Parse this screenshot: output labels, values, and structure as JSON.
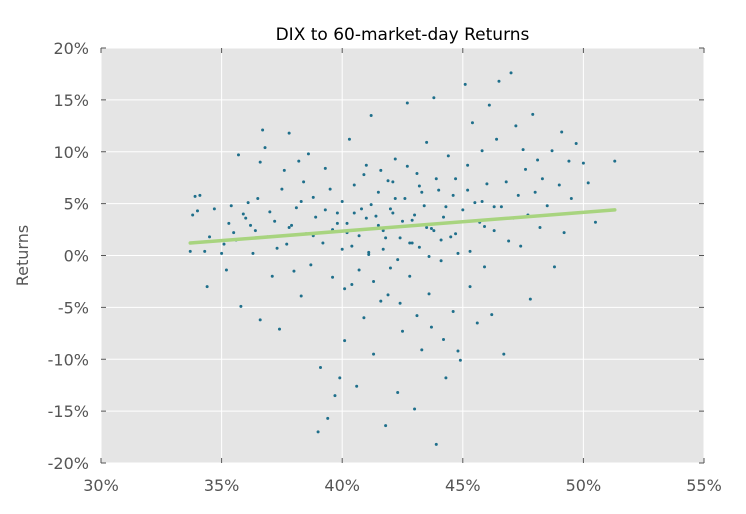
{
  "chart_data": {
    "type": "scatter",
    "title": "DIX to 60-market-day Returns",
    "xlabel": "",
    "ylabel": "Returns",
    "xlim": [
      0.3,
      0.55
    ],
    "ylim": [
      -0.2,
      0.2
    ],
    "x_ticks": [
      0.3,
      0.35,
      0.4,
      0.45,
      0.5,
      0.55
    ],
    "x_tick_labels": [
      "30%",
      "35%",
      "40%",
      "45%",
      "50%",
      "55%"
    ],
    "y_ticks": [
      -0.2,
      -0.15,
      -0.1,
      -0.05,
      0.0,
      0.05,
      0.1,
      0.15,
      0.2
    ],
    "y_tick_labels": [
      "-20%",
      "-15%",
      "-10%",
      "-5%",
      "0%",
      "5%",
      "10%",
      "15%",
      "20%"
    ],
    "grid": true,
    "background": "#e5e5e5",
    "point_color": "#1f6f8b",
    "trend_color": "#a8d47f",
    "trend_line": {
      "x": [
        0.337,
        0.513
      ],
      "y": [
        0.012,
        0.044
      ]
    },
    "points": [
      [
        0.337,
        0.004
      ],
      [
        0.338,
        0.039
      ],
      [
        0.339,
        0.057
      ],
      [
        0.34,
        0.043
      ],
      [
        0.341,
        0.058
      ],
      [
        0.343,
        0.004
      ],
      [
        0.344,
        -0.03
      ],
      [
        0.345,
        0.018
      ],
      [
        0.347,
        0.045
      ],
      [
        0.35,
        0.002
      ],
      [
        0.351,
        0.011
      ],
      [
        0.352,
        -0.014
      ],
      [
        0.353,
        0.031
      ],
      [
        0.354,
        0.048
      ],
      [
        0.355,
        0.022
      ],
      [
        0.356,
        0.015
      ],
      [
        0.357,
        0.097
      ],
      [
        0.358,
        -0.049
      ],
      [
        0.359,
        0.04
      ],
      [
        0.36,
        0.036
      ],
      [
        0.361,
        0.051
      ],
      [
        0.362,
        0.029
      ],
      [
        0.363,
        0.002
      ],
      [
        0.364,
        0.024
      ],
      [
        0.365,
        0.055
      ],
      [
        0.366,
        -0.062
      ],
      [
        0.366,
        0.09
      ],
      [
        0.367,
        0.121
      ],
      [
        0.368,
        0.104
      ],
      [
        0.369,
        0.018
      ],
      [
        0.37,
        0.042
      ],
      [
        0.371,
        -0.02
      ],
      [
        0.372,
        0.033
      ],
      [
        0.373,
        0.007
      ],
      [
        0.374,
        -0.071
      ],
      [
        0.375,
        0.064
      ],
      [
        0.376,
        0.082
      ],
      [
        0.377,
        0.011
      ],
      [
        0.378,
        0.118
      ],
      [
        0.379,
        0.029
      ],
      [
        0.38,
        -0.015
      ],
      [
        0.381,
        0.046
      ],
      [
        0.382,
        0.091
      ],
      [
        0.383,
        -0.039
      ],
      [
        0.384,
        0.071
      ],
      [
        0.385,
        0.021
      ],
      [
        0.386,
        0.098
      ],
      [
        0.387,
        -0.009
      ],
      [
        0.388,
        0.056
      ],
      [
        0.389,
        0.037
      ],
      [
        0.39,
        -0.17
      ],
      [
        0.391,
        -0.108
      ],
      [
        0.392,
        0.012
      ],
      [
        0.393,
        0.084
      ],
      [
        0.394,
        -0.157
      ],
      [
        0.395,
        0.064
      ],
      [
        0.396,
        0.025
      ],
      [
        0.397,
        -0.135
      ],
      [
        0.398,
        0.041
      ],
      [
        0.399,
        -0.118
      ],
      [
        0.4,
        0.006
      ],
      [
        0.4,
        0.052
      ],
      [
        0.401,
        -0.082
      ],
      [
        0.402,
        0.031
      ],
      [
        0.403,
        0.112
      ],
      [
        0.404,
        -0.028
      ],
      [
        0.405,
        0.068
      ],
      [
        0.406,
        -0.126
      ],
      [
        0.407,
        0.019
      ],
      [
        0.408,
        0.045
      ],
      [
        0.409,
        -0.06
      ],
      [
        0.41,
        0.087
      ],
      [
        0.411,
        0.003
      ],
      [
        0.412,
        0.135
      ],
      [
        0.413,
        -0.095
      ],
      [
        0.414,
        0.038
      ],
      [
        0.415,
        0.061
      ],
      [
        0.416,
        -0.044
      ],
      [
        0.417,
        0.024
      ],
      [
        0.418,
        -0.164
      ],
      [
        0.419,
        0.072
      ],
      [
        0.42,
        -0.012
      ],
      [
        0.421,
        0.041
      ],
      [
        0.422,
        0.093
      ],
      [
        0.423,
        -0.132
      ],
      [
        0.424,
        0.017
      ],
      [
        0.425,
        -0.073
      ],
      [
        0.426,
        0.055
      ],
      [
        0.427,
        0.147
      ],
      [
        0.428,
        -0.02
      ],
      [
        0.429,
        0.034
      ],
      [
        0.43,
        -0.148
      ],
      [
        0.431,
        0.079
      ],
      [
        0.432,
        0.008
      ],
      [
        0.433,
        -0.091
      ],
      [
        0.434,
        0.048
      ],
      [
        0.435,
        0.109
      ],
      [
        0.436,
        -0.037
      ],
      [
        0.437,
        0.026
      ],
      [
        0.438,
        0.152
      ],
      [
        0.439,
        -0.182
      ],
      [
        0.44,
        0.063
      ],
      [
        0.441,
        -0.005
      ],
      [
        0.442,
        0.037
      ],
      [
        0.443,
        -0.118
      ],
      [
        0.444,
        0.096
      ],
      [
        0.445,
        0.018
      ],
      [
        0.446,
        -0.054
      ],
      [
        0.447,
        0.074
      ],
      [
        0.448,
        0.002
      ],
      [
        0.449,
        -0.101
      ],
      [
        0.45,
        0.044
      ],
      [
        0.451,
        0.165
      ],
      [
        0.452,
        0.087
      ],
      [
        0.453,
        -0.03
      ],
      [
        0.454,
        0.128
      ],
      [
        0.455,
        0.051
      ],
      [
        0.456,
        -0.065
      ],
      [
        0.457,
        0.032
      ],
      [
        0.458,
        0.101
      ],
      [
        0.459,
        -0.011
      ],
      [
        0.46,
        0.069
      ],
      [
        0.461,
        0.145
      ],
      [
        0.462,
        -0.057
      ],
      [
        0.463,
        0.024
      ],
      [
        0.464,
        0.112
      ],
      [
        0.465,
        0.168
      ],
      [
        0.466,
        0.047
      ],
      [
        0.467,
        -0.095
      ],
      [
        0.468,
        0.071
      ],
      [
        0.469,
        0.014
      ],
      [
        0.47,
        0.176
      ],
      [
        0.471,
        0.036
      ],
      [
        0.472,
        0.125
      ],
      [
        0.473,
        0.058
      ],
      [
        0.474,
        0.009
      ],
      [
        0.475,
        0.102
      ],
      [
        0.476,
        0.083
      ],
      [
        0.477,
        0.039
      ],
      [
        0.478,
        -0.042
      ],
      [
        0.479,
        0.136
      ],
      [
        0.48,
        0.061
      ],
      [
        0.481,
        0.092
      ],
      [
        0.482,
        0.027
      ],
      [
        0.483,
        0.074
      ],
      [
        0.485,
        0.048
      ],
      [
        0.487,
        0.101
      ],
      [
        0.488,
        -0.011
      ],
      [
        0.49,
        0.068
      ],
      [
        0.491,
        0.119
      ],
      [
        0.492,
        0.022
      ],
      [
        0.494,
        0.091
      ],
      [
        0.495,
        0.055
      ],
      [
        0.497,
        0.108
      ],
      [
        0.5,
        0.089
      ],
      [
        0.502,
        0.07
      ],
      [
        0.505,
        0.032
      ],
      [
        0.513,
        0.091
      ],
      [
        0.405,
        0.041
      ],
      [
        0.41,
        0.036
      ],
      [
        0.415,
        0.029
      ],
      [
        0.42,
        0.045
      ],
      [
        0.425,
        0.033
      ],
      [
        0.43,
        0.039
      ],
      [
        0.435,
        0.027
      ],
      [
        0.402,
        0.022
      ],
      [
        0.412,
        0.049
      ],
      [
        0.418,
        0.017
      ],
      [
        0.422,
        0.055
      ],
      [
        0.428,
        0.012
      ],
      [
        0.433,
        0.061
      ],
      [
        0.438,
        0.024
      ],
      [
        0.443,
        0.047
      ],
      [
        0.398,
        0.031
      ],
      [
        0.393,
        0.044
      ],
      [
        0.388,
        0.019
      ],
      [
        0.383,
        0.052
      ],
      [
        0.378,
        0.027
      ],
      [
        0.407,
        -0.014
      ],
      [
        0.413,
        -0.025
      ],
      [
        0.419,
        -0.038
      ],
      [
        0.424,
        -0.046
      ],
      [
        0.431,
        -0.058
      ],
      [
        0.437,
        -0.069
      ],
      [
        0.442,
        -0.081
      ],
      [
        0.448,
        -0.092
      ],
      [
        0.401,
        -0.032
      ],
      [
        0.396,
        -0.021
      ],
      [
        0.409,
        0.078
      ],
      [
        0.416,
        0.082
      ],
      [
        0.421,
        0.071
      ],
      [
        0.427,
        0.086
      ],
      [
        0.432,
        0.067
      ],
      [
        0.439,
        0.074
      ],
      [
        0.446,
        0.058
      ],
      [
        0.452,
        0.063
      ],
      [
        0.458,
        0.052
      ],
      [
        0.463,
        0.047
      ],
      [
        0.404,
        0.009
      ],
      [
        0.411,
        0.001
      ],
      [
        0.417,
        0.006
      ],
      [
        0.423,
        -0.004
      ],
      [
        0.429,
        0.012
      ],
      [
        0.436,
        -0.001
      ],
      [
        0.441,
        0.015
      ],
      [
        0.447,
        0.021
      ],
      [
        0.453,
        0.004
      ],
      [
        0.459,
        0.028
      ]
    ]
  }
}
